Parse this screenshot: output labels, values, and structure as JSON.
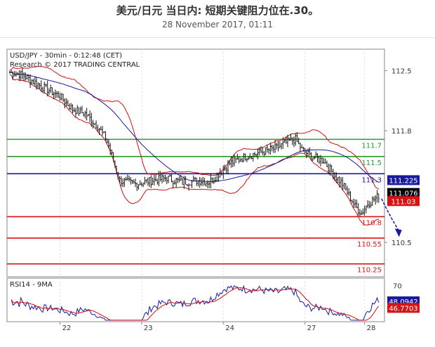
{
  "header": {
    "title": "美元/日元 当日内: 短期关键阻力位在.30。",
    "date": "28 November 2017, 01:11"
  },
  "chart_data": {
    "type": "candlestick",
    "info_line": "USD/JPY - 30min - 0:12:48 (CET)",
    "copyright": "Research © 2017 TRADING CENTRAL",
    "x_tick_labels": [
      "22",
      "23",
      "24",
      "27",
      "28"
    ],
    "y_tick_labels": [
      "112.5",
      "111.8",
      "110.5"
    ],
    "ylim": [
      110.1,
      112.75
    ],
    "levels": [
      {
        "value": 111.7,
        "label": "111.7",
        "color": "#2a9a2a"
      },
      {
        "value": 111.5,
        "label": "111.5",
        "color": "#2a9a2a"
      },
      {
        "value": 111.3,
        "label": "111.3",
        "color": "#1a1aa0"
      },
      {
        "value": 110.8,
        "label": "110.8",
        "color": "#d41414"
      },
      {
        "value": 110.55,
        "label": "110.55",
        "color": "#d41414"
      },
      {
        "value": 110.25,
        "label": "110.25",
        "color": "#d41414"
      }
    ],
    "price_tags": [
      {
        "value": 111.225,
        "label": "111.225",
        "bg": "#1a1aa0",
        "fg": "#ffffff"
      },
      {
        "value": 111.076,
        "label": "111.076",
        "bg": "#000000",
        "fg": "#ffffff"
      },
      {
        "value": 111.03,
        "label": "111.03",
        "bg": "#d41414",
        "fg": "#ffffff"
      }
    ],
    "rsi": {
      "label": "RSI14 - 9MA",
      "ylim": [
        20,
        80
      ],
      "y_tick_labels": [
        "70"
      ],
      "tags": [
        {
          "value": 48.0942,
          "label": "48.0942",
          "bg": "#1a1aa0",
          "fg": "#ffffff"
        },
        {
          "value": 46.7703,
          "label": "46.7703",
          "bg": "#d41414",
          "fg": "#ffffff"
        }
      ]
    },
    "close_path": [
      [
        0,
        112.48
      ],
      [
        8,
        112.45
      ],
      [
        20,
        112.32
      ],
      [
        32,
        112.2
      ],
      [
        40,
        112.05
      ],
      [
        48,
        112.0
      ],
      [
        56,
        111.85
      ],
      [
        61,
        111.72
      ],
      [
        64,
        111.58
      ],
      [
        66,
        111.45
      ],
      [
        70,
        111.22
      ],
      [
        80,
        111.18
      ],
      [
        90,
        111.22
      ],
      [
        100,
        111.25
      ],
      [
        110,
        111.2
      ],
      [
        120,
        111.22
      ],
      [
        127,
        111.2
      ],
      [
        132,
        111.28
      ],
      [
        140,
        111.42
      ],
      [
        150,
        111.5
      ],
      [
        160,
        111.55
      ],
      [
        170,
        111.6
      ],
      [
        178,
        111.68
      ],
      [
        182,
        111.7
      ],
      [
        186,
        111.58
      ],
      [
        192,
        111.5
      ],
      [
        200,
        111.45
      ],
      [
        206,
        111.3
      ],
      [
        212,
        111.18
      ],
      [
        216,
        111.05
      ],
      [
        220,
        110.92
      ],
      [
        224,
        110.84
      ],
      [
        228,
        110.95
      ],
      [
        232,
        111.0
      ],
      [
        236,
        111.06
      ]
    ],
    "colors": {
      "candle": "#111111",
      "bollinger": "#cc1111",
      "moving_average": "#1a1aa0",
      "projection_arrow": "#1a1aa0",
      "grid": "#dddddd",
      "rsi_line": "#1a1aa0",
      "rsi_ma": "#cc1111"
    }
  }
}
